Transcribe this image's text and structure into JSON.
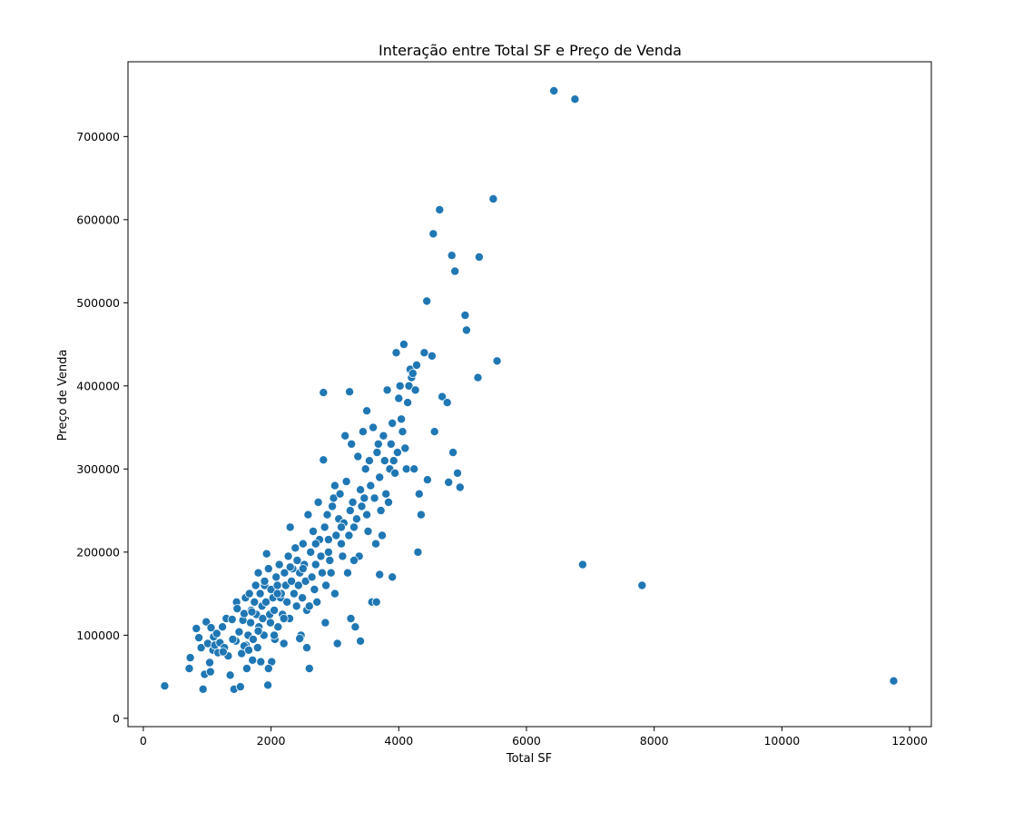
{
  "chart_data": {
    "type": "scatter",
    "title": "Interação entre Total SF e Preço de Venda",
    "xlabel": "Total SF",
    "ylabel": "Preço de Venda",
    "xlim": [
      -240,
      12340
    ],
    "ylim": [
      -10000,
      790000
    ],
    "xticks": [
      0,
      2000,
      4000,
      6000,
      8000,
      10000,
      12000
    ],
    "xtick_labels": [
      "0",
      "2000",
      "4000",
      "6000",
      "8000",
      "10000",
      "12000"
    ],
    "yticks": [
      0,
      100000,
      200000,
      300000,
      400000,
      500000,
      600000,
      700000
    ],
    "ytick_labels": [
      "0",
      "100000",
      "200000",
      "300000",
      "400000",
      "500000",
      "600000",
      "700000"
    ],
    "grid": false,
    "marker_color": "#1f77b4",
    "marker_edge_color": "#ffffff",
    "series": [
      {
        "x": [
          334,
          720,
          735,
          830,
          870,
          905,
          935,
          960,
          985,
          1010,
          1040,
          1050,
          1060,
          1090,
          1100,
          1120,
          1150,
          1170,
          1200,
          1240,
          1270,
          1300,
          1330,
          1360,
          1390,
          1420,
          1440,
          1460,
          1470,
          1500,
          1520,
          1540,
          1560,
          1580,
          1600,
          1610,
          1620,
          1640,
          1660,
          1680,
          1690,
          1710,
          1720,
          1740,
          1760,
          1770,
          1790,
          1800,
          1810,
          1830,
          1840,
          1860,
          1870,
          1890,
          1900,
          1920,
          1930,
          1950,
          1960,
          1980,
          1990,
          2000,
          2010,
          2030,
          2050,
          2060,
          2080,
          2100,
          2110,
          2130,
          2150,
          2160,
          2180,
          2200,
          2210,
          2230,
          2250,
          2270,
          2290,
          2300,
          2320,
          2340,
          2360,
          2380,
          2400,
          2410,
          2430,
          2450,
          2470,
          2490,
          2500,
          2520,
          2540,
          2560,
          2580,
          2600,
          2620,
          2640,
          2660,
          2680,
          2700,
          2720,
          2740,
          2760,
          2780,
          2800,
          2820,
          2840,
          2860,
          2880,
          2900,
          2920,
          2940,
          2960,
          2980,
          3000,
          3020,
          3040,
          3060,
          3080,
          3100,
          3120,
          3140,
          3160,
          3180,
          3200,
          3220,
          3240,
          3260,
          3280,
          3300,
          3320,
          3340,
          3360,
          3380,
          3400,
          3420,
          3440,
          3460,
          3480,
          3500,
          3520,
          3540,
          3560,
          3580,
          3600,
          3620,
          3640,
          3660,
          3680,
          3700,
          3720,
          3740,
          3760,
          3780,
          3800,
          3820,
          3840,
          3860,
          3880,
          3900,
          3920,
          3940,
          3960,
          3980,
          4000,
          4020,
          4040,
          4060,
          4080,
          4100,
          4120,
          4140,
          4160,
          4180,
          4200,
          4220,
          4240,
          4260,
          4280,
          4300,
          4320,
          4350,
          4400,
          4440,
          4450,
          4520,
          4540,
          4560,
          4640,
          4680,
          4760,
          4780,
          4830,
          4850,
          4880,
          4920,
          4960,
          5040,
          5060,
          5240,
          5260,
          5480,
          5540,
          6430,
          6760,
          6880,
          7810,
          11750,
          1450,
          1580,
          1960,
          2560,
          1400,
          1800,
          2200,
          2600,
          3000,
          3400,
          1250,
          1650,
          2050,
          2450,
          2850,
          3250,
          3650,
          1700,
          2100,
          2500,
          2900,
          3300,
          3700,
          1900,
          2300,
          2700,
          3100,
          3500,
          3900,
          2820,
          3230
        ],
        "y": [
          39000,
          60000,
          73000,
          108000,
          97000,
          85000,
          35000,
          53000,
          116000,
          90000,
          67000,
          56000,
          109000,
          82000,
          98000,
          88000,
          102000,
          79000,
          91000,
          110000,
          85000,
          120000,
          75000,
          52000,
          119000,
          35000,
          93000,
          140000,
          132000,
          104000,
          38000,
          78000,
          118000,
          126000,
          145000,
          88000,
          60000,
          100000,
          150000,
          115000,
          130000,
          70000,
          95000,
          140000,
          160000,
          125000,
          85000,
          175000,
          110000,
          150000,
          68000,
          135000,
          120000,
          100000,
          160000,
          140000,
          198000,
          40000,
          180000,
          125000,
          115000,
          155000,
          68000,
          145000,
          130000,
          95000,
          170000,
          160000,
          110000,
          185000,
          145000,
          150000,
          125000,
          90000,
          175000,
          160000,
          140000,
          195000,
          120000,
          230000,
          165000,
          180000,
          150000,
          205000,
          135000,
          190000,
          160000,
          175000,
          100000,
          145000,
          210000,
          185000,
          165000,
          130000,
          245000,
          60000,
          200000,
          170000,
          225000,
          155000,
          185000,
          140000,
          260000,
          215000,
          195000,
          175000,
          311000,
          230000,
          160000,
          245000,
          215000,
          190000,
          175000,
          255000,
          265000,
          280000,
          220000,
          90000,
          240000,
          270000,
          210000,
          195000,
          235000,
          340000,
          285000,
          175000,
          220000,
          250000,
          330000,
          260000,
          230000,
          110000,
          240000,
          315000,
          195000,
          275000,
          255000,
          345000,
          265000,
          300000,
          370000,
          225000,
          310000,
          280000,
          140000,
          350000,
          265000,
          210000,
          320000,
          330000,
          290000,
          250000,
          220000,
          340000,
          310000,
          270000,
          395000,
          260000,
          300000,
          330000,
          355000,
          310000,
          295000,
          440000,
          320000,
          385000,
          400000,
          360000,
          345000,
          450000,
          325000,
          300000,
          380000,
          400000,
          420000,
          410000,
          415000,
          300000,
          395000,
          425000,
          200000,
          270000,
          245000,
          440000,
          502000,
          287000,
          436000,
          583000,
          345000,
          612000,
          387000,
          380000,
          284000,
          557000,
          320000,
          538000,
          295000,
          278000,
          485000,
          467000,
          410000,
          555000,
          625000,
          430000,
          755000,
          745000,
          185000,
          160000,
          45000,
          93000,
          87000,
          60000,
          85000,
          95000,
          105000,
          120000,
          135000,
          150000,
          93000,
          80000,
          82000,
          100000,
          96000,
          115000,
          120000,
          140000,
          128000,
          150000,
          180000,
          200000,
          190000,
          173000,
          165000,
          182000,
          210000,
          230000,
          245000,
          170000,
          392000,
          393000
        ]
      }
    ]
  }
}
